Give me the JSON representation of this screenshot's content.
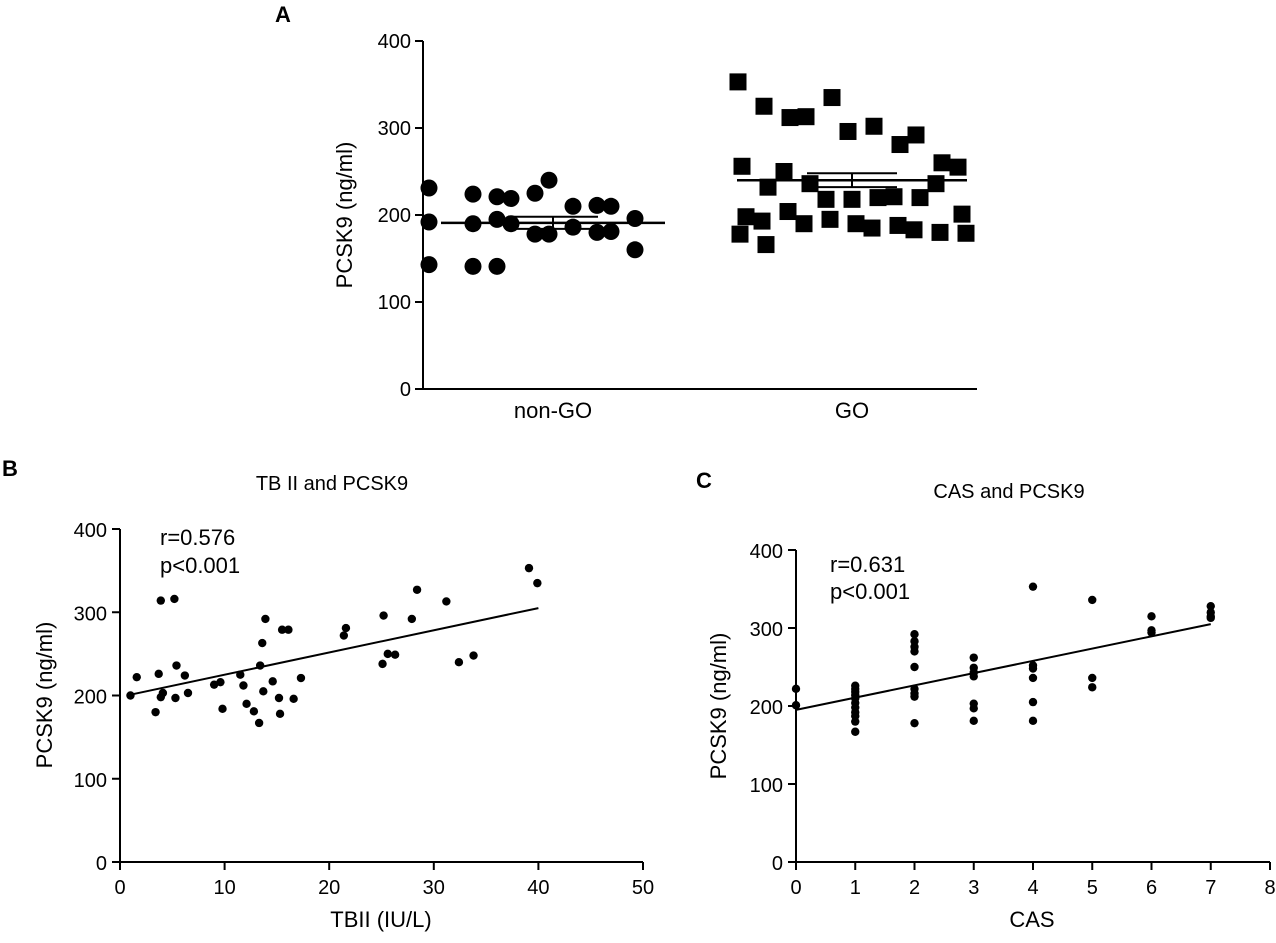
{
  "chart_data": [
    {
      "panel": "A",
      "type": "scatter",
      "subtype": "dot-plot with mean ± SEM",
      "title": "",
      "xlabel": "",
      "ylabel": "PCSK9 (ng/ml)",
      "ylim": [
        0,
        400
      ],
      "yticks": [
        "0",
        "100",
        "200",
        "300",
        "400"
      ],
      "categories": [
        "non-GO",
        "GO"
      ],
      "series": [
        {
          "name": "non-GO",
          "marker": "circle",
          "mean": 191,
          "sem": 7,
          "values": [
            231,
            224,
            221,
            219,
            225,
            240,
            210,
            211,
            210,
            196,
            192,
            190,
            195,
            190,
            178,
            178,
            186,
            180,
            181,
            160,
            143,
            141,
            141
          ]
        },
        {
          "name": "GO",
          "marker": "square",
          "mean": 240,
          "sem": 8,
          "values": [
            353,
            325,
            312,
            313,
            335,
            296,
            302,
            281,
            292,
            260,
            255,
            256,
            232,
            250,
            236,
            218,
            218,
            220,
            221,
            220,
            236,
            201,
            198,
            193,
            204,
            190,
            195,
            190,
            185,
            188,
            183,
            180,
            179,
            178,
            166
          ]
        }
      ]
    },
    {
      "panel": "B",
      "type": "scatter",
      "title": "TB II and PCSK9",
      "xlabel": "TBII (IU/L)",
      "ylabel": "PCSK9 (ng/ml)",
      "xlim": [
        0,
        50
      ],
      "ylim": [
        0,
        400
      ],
      "xticks": [
        "0",
        "10",
        "20",
        "30",
        "40",
        "50"
      ],
      "yticks": [
        "0",
        "100",
        "200",
        "300",
        "400"
      ],
      "annotation": [
        "r=0.576",
        "p<0.001"
      ],
      "regression": {
        "x": [
          1,
          40
        ],
        "y": [
          201,
          305
        ]
      },
      "points": [
        [
          1.0,
          200
        ],
        [
          1.6,
          222
        ],
        [
          3.4,
          180
        ],
        [
          3.7,
          226
        ],
        [
          3.9,
          198
        ],
        [
          3.9,
          314
        ],
        [
          4.1,
          203
        ],
        [
          5.2,
          316
        ],
        [
          5.4,
          236
        ],
        [
          5.3,
          197
        ],
        [
          6.2,
          224
        ],
        [
          6.5,
          203
        ],
        [
          9.0,
          213
        ],
        [
          9.6,
          216
        ],
        [
          9.8,
          184
        ],
        [
          11.5,
          225
        ],
        [
          11.8,
          212
        ],
        [
          12.1,
          190
        ],
        [
          12.8,
          181
        ],
        [
          13.3,
          167
        ],
        [
          13.4,
          236
        ],
        [
          13.6,
          263
        ],
        [
          13.7,
          205
        ],
        [
          13.9,
          292
        ],
        [
          14.6,
          217
        ],
        [
          15.2,
          197
        ],
        [
          15.3,
          178
        ],
        [
          15.5,
          279
        ],
        [
          16.1,
          279
        ],
        [
          16.6,
          196
        ],
        [
          17.3,
          221
        ],
        [
          21.4,
          272
        ],
        [
          21.6,
          281
        ],
        [
          25.1,
          238
        ],
        [
          25.2,
          296
        ],
        [
          25.6,
          250
        ],
        [
          26.3,
          249
        ],
        [
          27.9,
          292
        ],
        [
          28.4,
          327
        ],
        [
          31.2,
          313
        ],
        [
          32.4,
          240
        ],
        [
          33.8,
          248
        ],
        [
          39.1,
          353
        ],
        [
          39.9,
          335
        ]
      ]
    },
    {
      "panel": "C",
      "type": "scatter",
      "title": "CAS and PCSK9",
      "xlabel": "CAS",
      "ylabel": "PCSK9 (ng/ml)",
      "xlim": [
        0,
        8
      ],
      "ylim": [
        0,
        400
      ],
      "xticks": [
        "0",
        "1",
        "2",
        "3",
        "4",
        "5",
        "6",
        "7",
        "8"
      ],
      "yticks": [
        "0",
        "100",
        "200",
        "300",
        "400"
      ],
      "annotation": [
        "r=0.631",
        "p<0.001"
      ],
      "regression": {
        "x": [
          0,
          7
        ],
        "y": [
          195,
          305
        ]
      },
      "points": [
        [
          0,
          222
        ],
        [
          0,
          201
        ],
        [
          1,
          226
        ],
        [
          1,
          222
        ],
        [
          1,
          218
        ],
        [
          1,
          214
        ],
        [
          1,
          210
        ],
        [
          1,
          204
        ],
        [
          1,
          198
        ],
        [
          1,
          192
        ],
        [
          1,
          187
        ],
        [
          1,
          180
        ],
        [
          1,
          167
        ],
        [
          2,
          292
        ],
        [
          2,
          283
        ],
        [
          2,
          276
        ],
        [
          2,
          270
        ],
        [
          2,
          250
        ],
        [
          2,
          222
        ],
        [
          2,
          216
        ],
        [
          2,
          212
        ],
        [
          2,
          178
        ],
        [
          3,
          262
        ],
        [
          3,
          249
        ],
        [
          3,
          243
        ],
        [
          3,
          238
        ],
        [
          3,
          203
        ],
        [
          3,
          197
        ],
        [
          3,
          181
        ],
        [
          4,
          353
        ],
        [
          4,
          252
        ],
        [
          4,
          248
        ],
        [
          4,
          236
        ],
        [
          4,
          205
        ],
        [
          4,
          181
        ],
        [
          5,
          336
        ],
        [
          5,
          236
        ],
        [
          5,
          224
        ],
        [
          6,
          315
        ],
        [
          6,
          297
        ],
        [
          6,
          294
        ],
        [
          7,
          328
        ],
        [
          7,
          320
        ],
        [
          7,
          315
        ],
        [
          7,
          313
        ]
      ]
    }
  ]
}
